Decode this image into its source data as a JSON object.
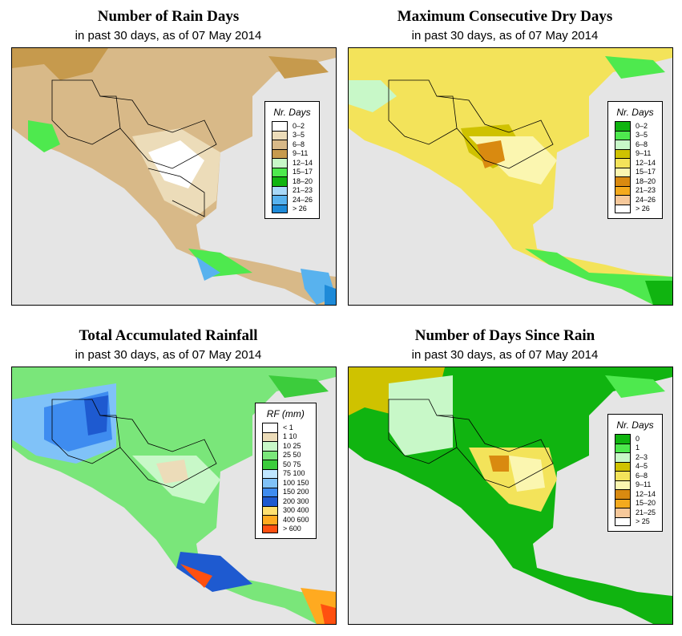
{
  "panels": [
    {
      "title": "Number of Rain Days",
      "subtitle": "in past 30 days, as of  07 May 2014",
      "legend": {
        "title": "Nr. Days",
        "items": [
          {
            "label": "0–2",
            "color": "#ffffff"
          },
          {
            "label": "3–5",
            "color": "#ecdcb9"
          },
          {
            "label": "6–8",
            "color": "#d8b988"
          },
          {
            "label": "9–11",
            "color": "#c69a4d"
          },
          {
            "label": "12–14",
            "color": "#c8f8c8"
          },
          {
            "label": "15–17",
            "color": "#4ee94e"
          },
          {
            "label": "18–20",
            "color": "#10b410"
          },
          {
            "label": "21–23",
            "color": "#a8d8f8"
          },
          {
            "label": "24–26",
            "color": "#58b2ee"
          },
          {
            "label": "> 26",
            "color": "#1e8ad8"
          }
        ]
      }
    },
    {
      "title": "Maximum Consecutive Dry Days",
      "subtitle": "in past 30 days, as of  07 May 2014",
      "legend": {
        "title": "Nr. Days",
        "items": [
          {
            "label": "0–2",
            "color": "#10b410"
          },
          {
            "label": "3–5",
            "color": "#4ee94e"
          },
          {
            "label": "6–8",
            "color": "#c8f8c8"
          },
          {
            "label": "9–11",
            "color": "#cfc200"
          },
          {
            "label": "12–14",
            "color": "#f3e35a"
          },
          {
            "label": "15–17",
            "color": "#fbf6b0"
          },
          {
            "label": "18–20",
            "color": "#d98a10"
          },
          {
            "label": "21–23",
            "color": "#f4aa1e"
          },
          {
            "label": "24–26",
            "color": "#f6c89a"
          },
          {
            "label": "> 26",
            "color": "#ffffff"
          }
        ]
      }
    },
    {
      "title": "Total Accumulated Rainfall",
      "subtitle": "in past 30 days, as of  07 May 2014",
      "legend": {
        "title": "RF (mm)",
        "items": [
          {
            "label": "< 1",
            "color": "#ffffff"
          },
          {
            "label": "1  10",
            "color": "#ecdcb9"
          },
          {
            "label": "10  25",
            "color": "#c8f8c8"
          },
          {
            "label": "25  50",
            "color": "#7ae67a"
          },
          {
            "label": "50  75",
            "color": "#3ccc3c"
          },
          {
            "label": "75  100",
            "color": "#bfe6ff"
          },
          {
            "label": "100  150",
            "color": "#80c2f8"
          },
          {
            "label": "150  200",
            "color": "#3e8cf0"
          },
          {
            "label": "200  300",
            "color": "#1e5ad0"
          },
          {
            "label": "300  400",
            "color": "#ffe070"
          },
          {
            "label": "400  600",
            "color": "#ffaa20"
          },
          {
            "label": "> 600",
            "color": "#ff5010"
          }
        ]
      }
    },
    {
      "title": "Number of Days Since Rain",
      "subtitle": "in past 30 days, as of  07 May 2014",
      "legend": {
        "title": "Nr. Days",
        "items": [
          {
            "label": "0",
            "color": "#10b410"
          },
          {
            "label": "1",
            "color": "#4ee94e"
          },
          {
            "label": "2–3",
            "color": "#c8f8c8"
          },
          {
            "label": "4–5",
            "color": "#cfc200"
          },
          {
            "label": "6–8",
            "color": "#f3e35a"
          },
          {
            "label": "9–11",
            "color": "#fbf6b0"
          },
          {
            "label": "12–14",
            "color": "#d98a10"
          },
          {
            "label": "15–20",
            "color": "#f4aa1e"
          },
          {
            "label": "21–25",
            "color": "#f6c89a"
          },
          {
            "label": "> 25",
            "color": "#ffffff"
          }
        ]
      }
    }
  ]
}
